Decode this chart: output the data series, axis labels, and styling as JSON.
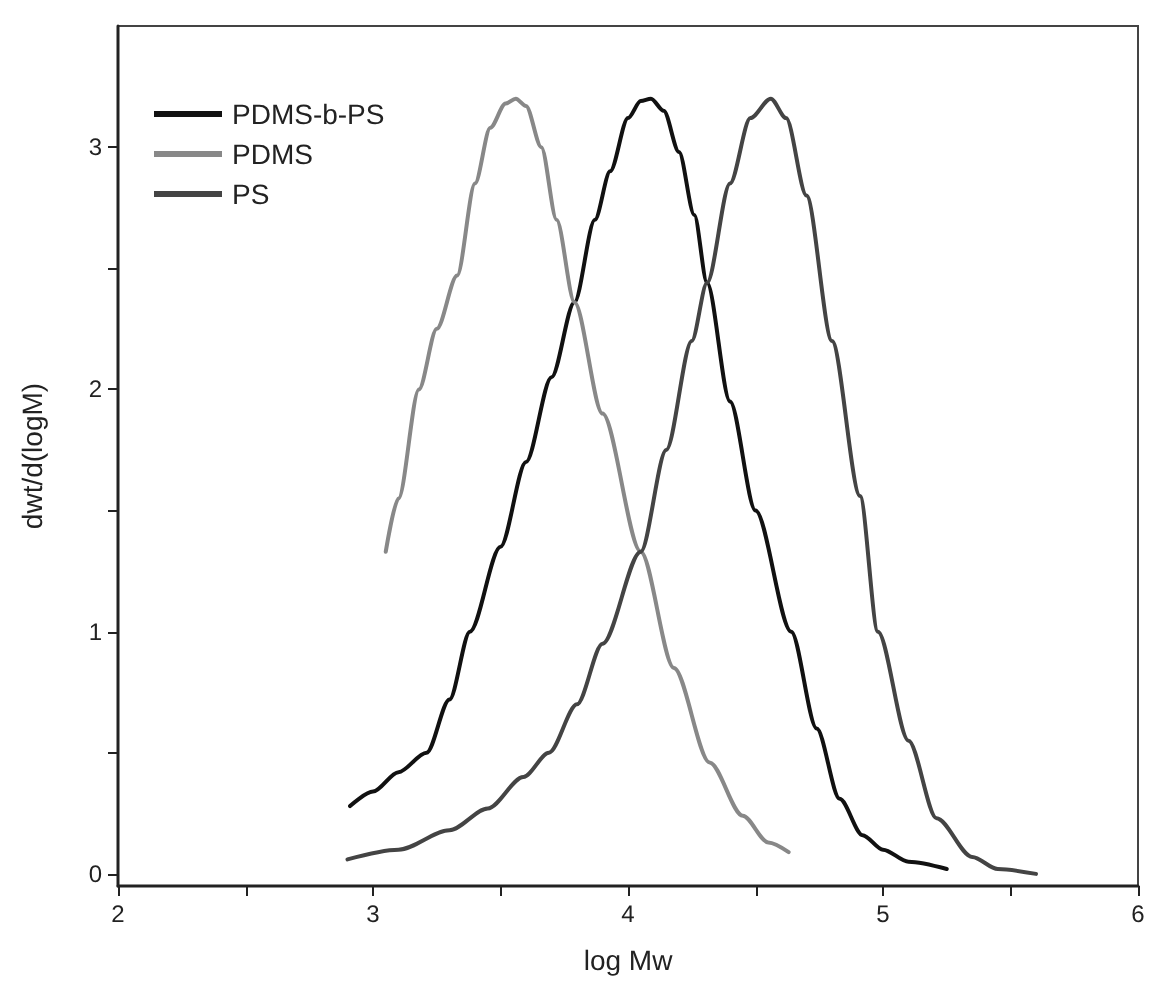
{
  "chart_data": {
    "type": "line",
    "xlabel": "log Mw",
    "ylabel": "dwt/d(logM)",
    "xlim": [
      2,
      6
    ],
    "ylim": [
      -0.05,
      3.5
    ],
    "xticks": [
      2,
      {
        "value": 2.5,
        "label": null
      },
      3,
      {
        "value": 3.5,
        "label": null
      },
      4,
      {
        "value": 4.5,
        "label": null
      },
      5,
      {
        "value": 5.5,
        "label": null
      },
      6
    ],
    "yticks": [
      0,
      {
        "value": 0.5,
        "label": null
      },
      1,
      {
        "value": 1.5,
        "label": null
      },
      2,
      {
        "value": 2.5,
        "label": null
      },
      3
    ],
    "legend": "top left",
    "grid": false,
    "marker": "none",
    "line_style": "solid",
    "series": [
      {
        "name": "PDMS-b-PS",
        "color": "#111111",
        "x": [
          2.91,
          3.0,
          3.1,
          3.21,
          3.3,
          3.38,
          3.5,
          3.6,
          3.7,
          3.79,
          3.87,
          3.93,
          4.0,
          4.05,
          4.09,
          4.14,
          4.2,
          4.26,
          4.31,
          4.4,
          4.5,
          4.64,
          4.74,
          4.83,
          4.92,
          5.0,
          5.1,
          5.25
        ],
        "values": [
          0.28,
          0.34,
          0.42,
          0.5,
          0.72,
          1.0,
          1.35,
          1.7,
          2.05,
          2.36,
          2.7,
          2.9,
          3.12,
          3.19,
          3.2,
          3.15,
          2.98,
          2.72,
          2.44,
          1.95,
          1.5,
          1.0,
          0.6,
          0.31,
          0.16,
          0.1,
          0.05,
          0.02
        ]
      },
      {
        "name": "PDMS",
        "color": "#888888",
        "x": [
          3.05,
          3.1,
          3.18,
          3.25,
          3.33,
          3.4,
          3.46,
          3.52,
          3.56,
          3.6,
          3.66,
          3.72,
          3.79,
          3.9,
          4.05,
          4.18,
          4.32,
          4.45,
          4.55,
          4.63
        ],
        "values": [
          1.33,
          1.55,
          2.0,
          2.25,
          2.47,
          2.85,
          3.08,
          3.18,
          3.2,
          3.17,
          3.0,
          2.7,
          2.36,
          1.9,
          1.33,
          0.85,
          0.46,
          0.24,
          0.13,
          0.09
        ]
      },
      {
        "name": "PS",
        "color": "#444444",
        "x": [
          2.9,
          3.1,
          3.3,
          3.45,
          3.59,
          3.69,
          3.8,
          3.9,
          4.05,
          4.15,
          4.25,
          4.31,
          4.4,
          4.48,
          4.56,
          4.62,
          4.7,
          4.8,
          4.91,
          4.98,
          5.1,
          5.21,
          5.35,
          5.45,
          5.6
        ],
        "values": [
          0.06,
          0.1,
          0.18,
          0.27,
          0.4,
          0.5,
          0.7,
          0.95,
          1.33,
          1.75,
          2.2,
          2.44,
          2.85,
          3.12,
          3.2,
          3.12,
          2.8,
          2.2,
          1.56,
          1.0,
          0.55,
          0.23,
          0.07,
          0.02,
          0.0
        ]
      }
    ]
  }
}
